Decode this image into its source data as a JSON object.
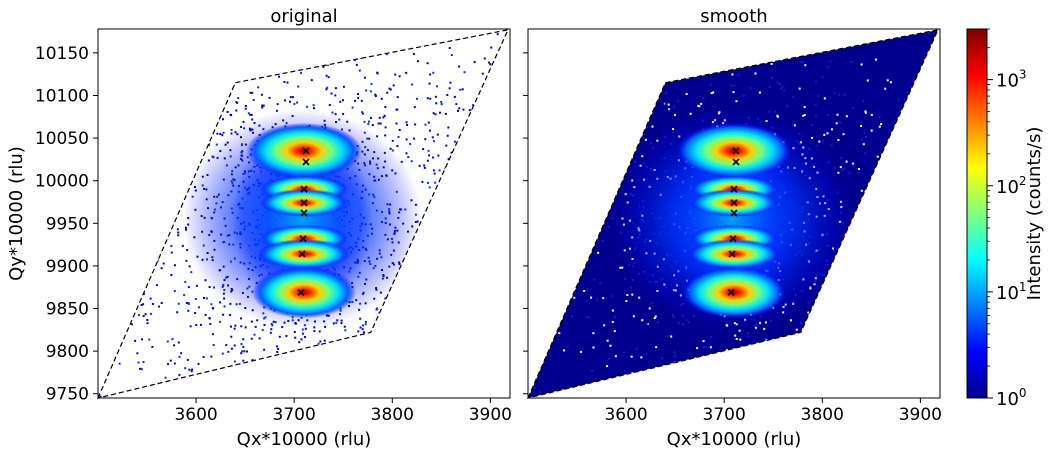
{
  "chart_data": [
    {
      "type": "heatmap",
      "title": "original",
      "xlabel": "Qx*10000 (rlu)",
      "ylabel": "Qy*10000 (rlu)",
      "xlim": [
        3500,
        3920
      ],
      "ylim": [
        9745,
        10178
      ],
      "xticks": [
        3600,
        3700,
        3800,
        3900
      ],
      "yticks": [
        9750,
        9800,
        9850,
        9900,
        9950,
        10000,
        10050,
        10100,
        10150
      ],
      "scan_region": [
        [
          3500,
          9745
        ],
        [
          3640,
          10115
        ],
        [
          3918,
          10177
        ],
        [
          3778,
          9822
        ]
      ],
      "peaks": [
        {
          "x": 3712,
          "y": 10035
        },
        {
          "x": 3712,
          "y": 10022
        },
        {
          "x": 3710,
          "y": 9990
        },
        {
          "x": 3710,
          "y": 9974
        },
        {
          "x": 3710,
          "y": 9962
        },
        {
          "x": 3709,
          "y": 9932
        },
        {
          "x": 3708,
          "y": 9914
        },
        {
          "x": 3707,
          "y": 9869
        }
      ]
    },
    {
      "type": "heatmap",
      "title": "smooth",
      "xlabel": "Qx*10000 (rlu)",
      "ylabel": "",
      "xlim": [
        3500,
        3920
      ],
      "ylim": [
        9745,
        10178
      ],
      "xticks": [
        3600,
        3700,
        3800,
        3900
      ],
      "yticks": [
        9750,
        9800,
        9850,
        9900,
        9950,
        10000,
        10050,
        10100,
        10150
      ],
      "scan_region": [
        [
          3500,
          9745
        ],
        [
          3640,
          10115
        ],
        [
          3918,
          10177
        ],
        [
          3778,
          9822
        ]
      ],
      "peaks": [
        {
          "x": 3712,
          "y": 10035
        },
        {
          "x": 3712,
          "y": 10022
        },
        {
          "x": 3710,
          "y": 9990
        },
        {
          "x": 3710,
          "y": 9974
        },
        {
          "x": 3710,
          "y": 9962
        },
        {
          "x": 3709,
          "y": 9932
        },
        {
          "x": 3708,
          "y": 9914
        },
        {
          "x": 3707,
          "y": 9869
        }
      ]
    }
  ],
  "colorbar": {
    "label": "Intensity (counts/s)",
    "scale": "log",
    "range": [
      1,
      3000
    ],
    "ticks": [
      {
        "value": 1,
        "base": "10",
        "exp": "0"
      },
      {
        "value": 10,
        "base": "10",
        "exp": "1"
      },
      {
        "value": 100,
        "base": "10",
        "exp": "2"
      },
      {
        "value": 1000,
        "base": "10",
        "exp": "3"
      }
    ],
    "colormap": "jet"
  }
}
